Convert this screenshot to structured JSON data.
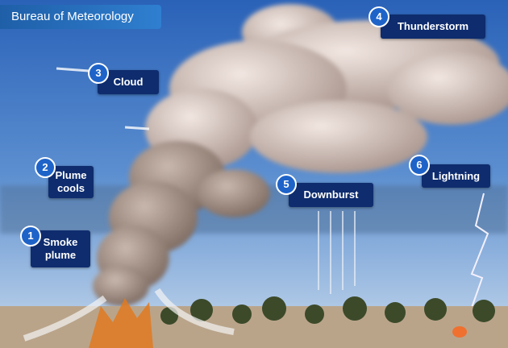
{
  "header": {
    "title": "Bureau of Meteorology"
  },
  "steps": [
    {
      "number": 1,
      "label": "Smoke plume"
    },
    {
      "number": 2,
      "label": "Plume cools"
    },
    {
      "number": 3,
      "label": "Cloud"
    },
    {
      "number": 4,
      "label": "Thunderstorm"
    },
    {
      "number": 5,
      "label": "Downburst"
    },
    {
      "number": 6,
      "label": "Lightning"
    }
  ]
}
